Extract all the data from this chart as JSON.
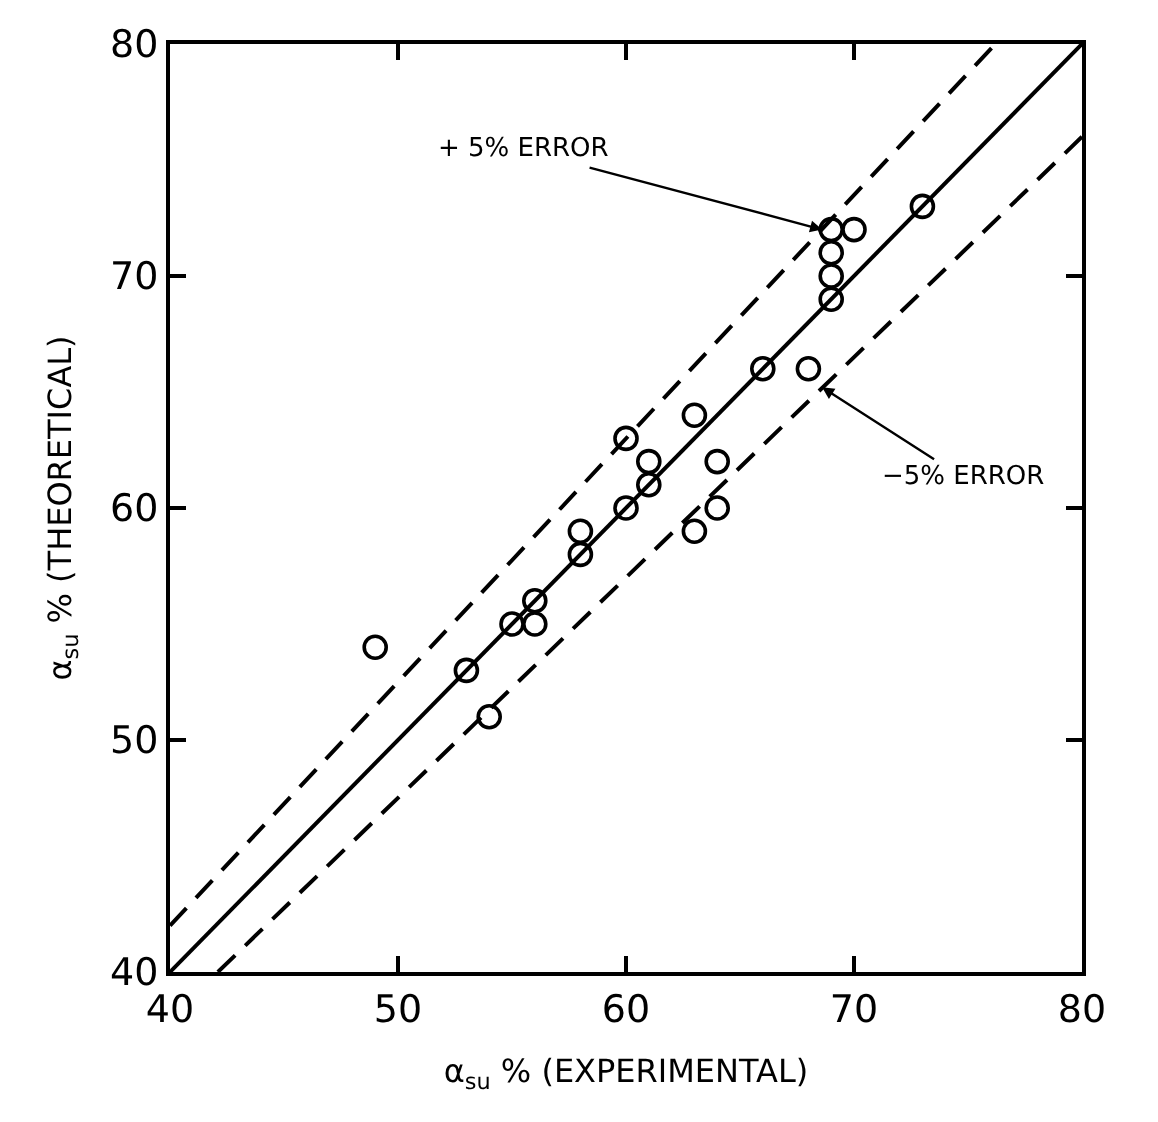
{
  "chart_data": {
    "type": "scatter",
    "xlabel": "α$_{su}$ % (EXPERIMENTAL)",
    "ylabel": "α$_{su}$ % (THEORETICAL)",
    "xlim": [
      40,
      80
    ],
    "ylim": [
      40,
      80
    ],
    "xticks": [
      40,
      50,
      60,
      70,
      80
    ],
    "yticks": [
      40,
      50,
      60,
      70,
      80
    ],
    "series": [
      {
        "marker": "circle",
        "color": "#000000",
        "x": [
          49,
          53,
          54,
          55,
          56,
          56,
          58,
          58,
          60,
          60,
          61,
          61,
          63,
          63,
          64,
          64,
          66,
          68,
          69,
          69,
          69,
          69,
          70,
          73
        ],
        "values": [
          54,
          53,
          51,
          55,
          56,
          55,
          59,
          58,
          63,
          60,
          62,
          61,
          64,
          59,
          62,
          60,
          66,
          66,
          72,
          71,
          70,
          69,
          72,
          73
        ]
      },
      {
        "type": "line",
        "marker": "none",
        "line_style": "solid",
        "color": "#000000",
        "x": [
          40,
          80
        ],
        "values": [
          40,
          80
        ]
      },
      {
        "type": "line",
        "marker": "none",
        "line_style": "dashed",
        "color": "#000000",
        "x": [
          40,
          76.2
        ],
        "values": [
          42,
          80
        ]
      },
      {
        "type": "line",
        "marker": "none",
        "line_style": "dashed",
        "color": "#000000",
        "x": [
          42.1,
          80
        ],
        "values": [
          40,
          76
        ]
      }
    ],
    "annotations": [
      {
        "text": "+ 5% ERROR",
        "x": 68.6,
        "y": 72
      },
      {
        "text": "−5% ERROR",
        "x": 68.6,
        "y": 65.2
      }
    ]
  }
}
